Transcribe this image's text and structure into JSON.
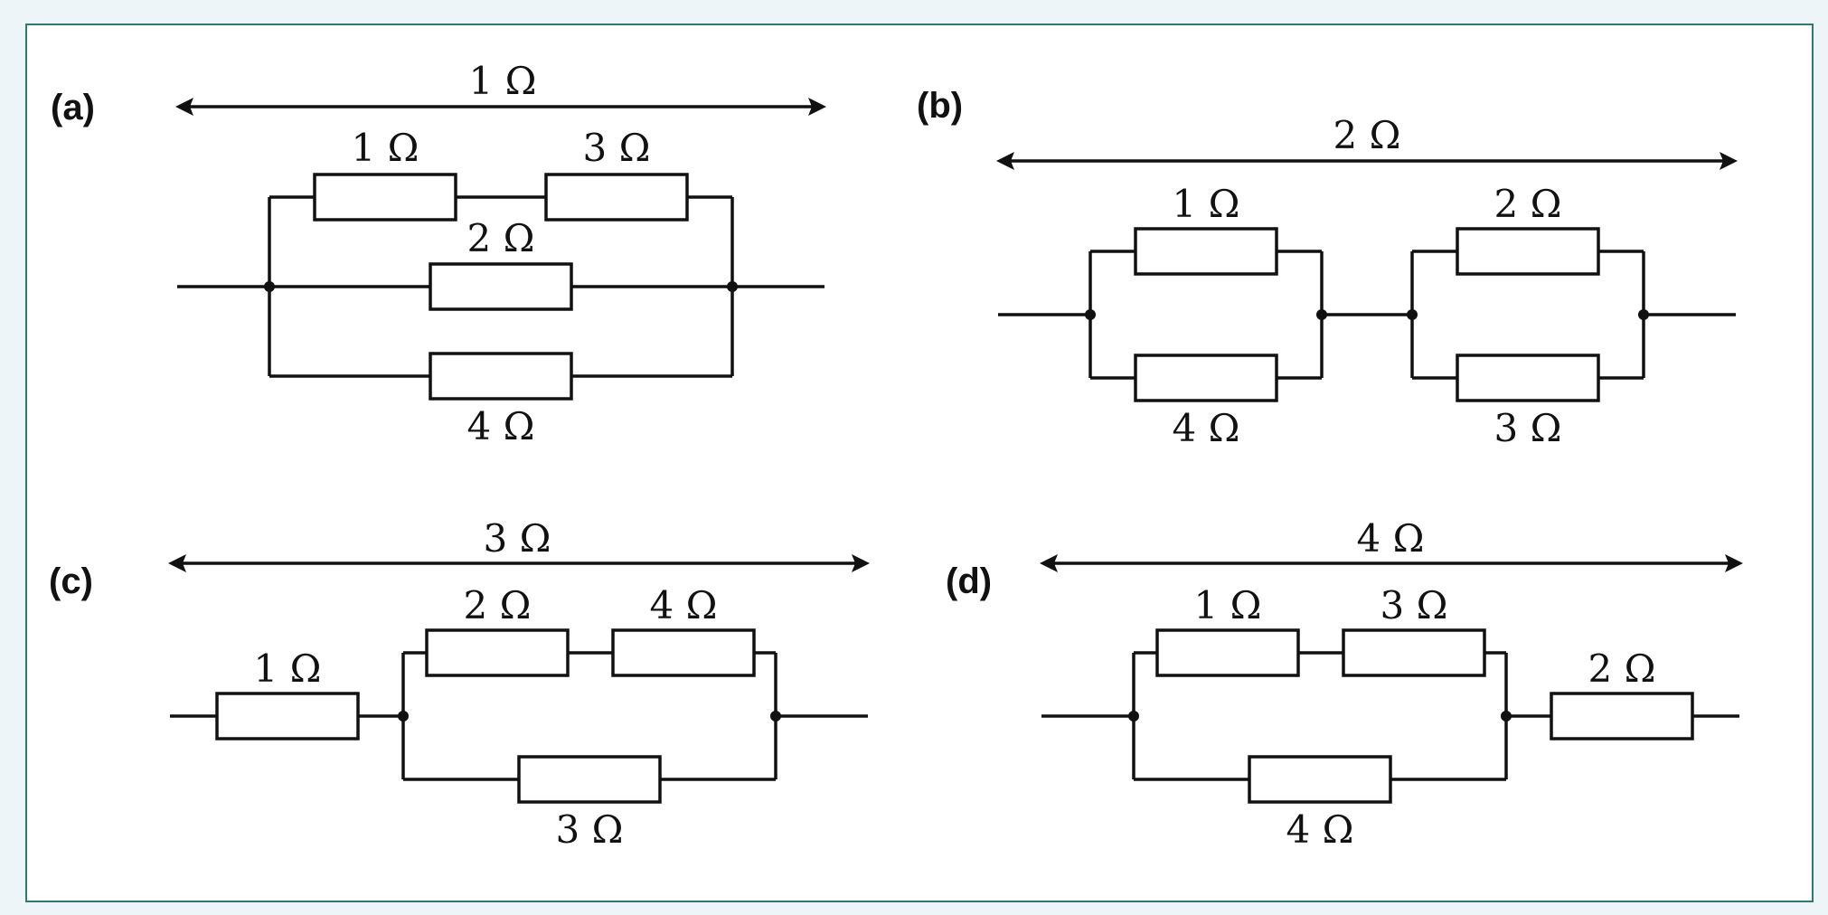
{
  "panels": [
    {
      "label": "(a)",
      "total": "1 Ω",
      "resistors": [
        "1 Ω",
        "3 Ω",
        "2 Ω",
        "4 Ω"
      ]
    },
    {
      "label": "(b)",
      "total": "2 Ω",
      "resistors": [
        "1 Ω",
        "4 Ω",
        "2 Ω",
        "3 Ω"
      ]
    },
    {
      "label": "(c)",
      "total": "3 Ω",
      "resistors": [
        "1 Ω",
        "2 Ω",
        "4 Ω",
        "3 Ω"
      ]
    },
    {
      "label": "(d)",
      "total": "4 Ω",
      "resistors": [
        "1 Ω",
        "3 Ω",
        "4 Ω",
        "2 Ω"
      ]
    }
  ]
}
